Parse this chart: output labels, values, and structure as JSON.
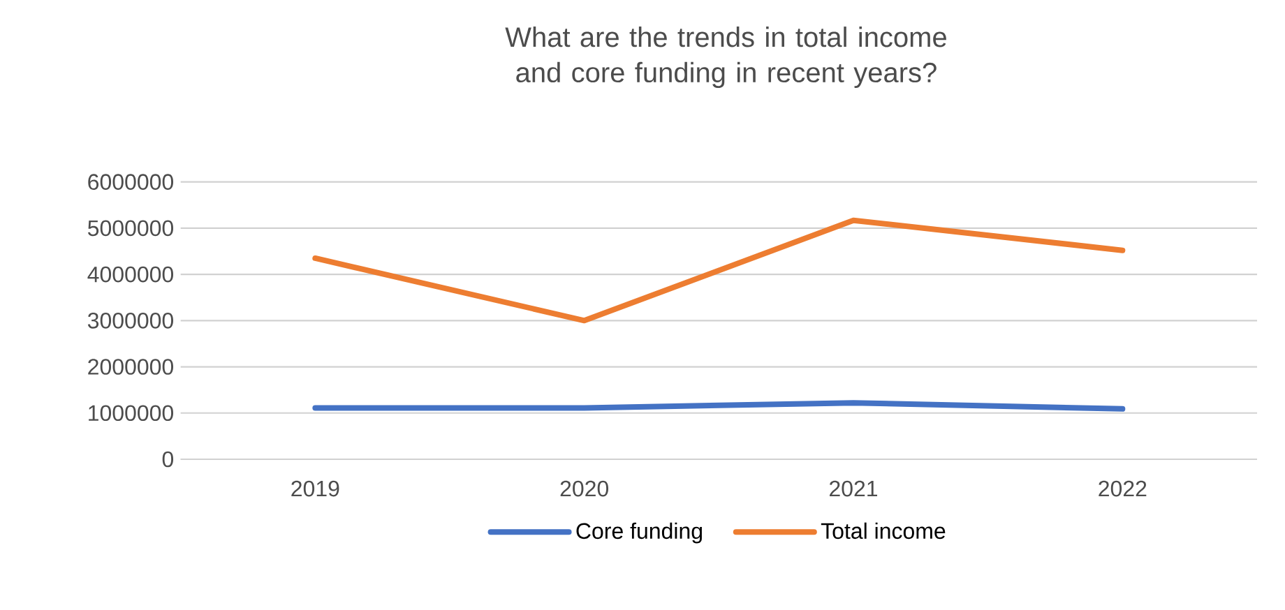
{
  "chart_data": {
    "type": "line",
    "title": "What are the trends in total income and core funding in recent years?",
    "categories": [
      "2019",
      "2020",
      "2021",
      "2022"
    ],
    "series": [
      {
        "name": "Core funding",
        "color": "#4472c4",
        "values": [
          1110000,
          1110000,
          1220000,
          1090000
        ]
      },
      {
        "name": "Total income",
        "color": "#ed7d31",
        "values": [
          4350000,
          3000000,
          5170000,
          4520000
        ]
      }
    ],
    "ylim": [
      0,
      6000000
    ],
    "yticks": [
      0,
      1000000,
      2000000,
      3000000,
      4000000,
      5000000,
      6000000
    ],
    "grid": "y",
    "legend": "bottom",
    "marker": "none",
    "line_style": "solid"
  }
}
